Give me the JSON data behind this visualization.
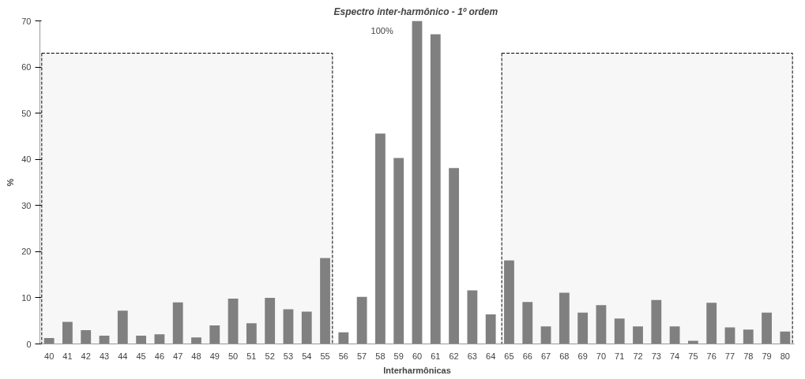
{
  "chart_data": {
    "type": "bar",
    "title": "Espectro inter-harmônico  - 1º ordem",
    "xlabel": "Interharmônicas",
    "ylabel": "%",
    "x": [
      40,
      41,
      42,
      43,
      44,
      45,
      46,
      47,
      48,
      49,
      50,
      51,
      52,
      53,
      54,
      55,
      56,
      57,
      58,
      59,
      60,
      61,
      62,
      63,
      64,
      65,
      66,
      67,
      68,
      69,
      70,
      71,
      72,
      73,
      74,
      75,
      76,
      77,
      78,
      79,
      80
    ],
    "values": [
      1.3,
      4.8,
      3.0,
      1.8,
      7.2,
      1.8,
      2.1,
      9.0,
      1.4,
      4.0,
      9.8,
      4.5,
      10.0,
      7.5,
      7.0,
      18.6,
      2.5,
      10.2,
      45.6,
      40.3,
      70,
      67.1,
      38.1,
      11.6,
      6.4,
      18.1,
      9.1,
      3.8,
      11.1,
      6.8,
      8.4,
      5.5,
      3.8,
      9.5,
      3.8,
      0.7,
      8.9,
      3.6,
      3.1,
      6.8,
      2.7
    ],
    "color": "#808080",
    "xlim": [
      39.5,
      80.5
    ],
    "xticks": [
      40,
      41,
      42,
      43,
      44,
      45,
      46,
      47,
      48,
      49,
      50,
      51,
      52,
      53,
      54,
      55,
      56,
      57,
      58,
      59,
      60,
      61,
      62,
      63,
      64,
      65,
      66,
      67,
      68,
      69,
      70,
      71,
      72,
      73,
      74,
      75,
      76,
      77,
      78,
      79,
      80
    ],
    "ylim": [
      0,
      70
    ],
    "yticks": [
      0,
      10,
      20,
      30,
      40,
      50,
      60,
      70
    ],
    "grid": false,
    "annotations": [
      "100%"
    ],
    "bands": [
      {
        "axis": "x",
        "from": 39.6,
        "to": 55.4,
        "color": "#000000"
      },
      {
        "axis": "x",
        "from": 64.6,
        "to": 80.4,
        "color": "#000000"
      }
    ]
  }
}
